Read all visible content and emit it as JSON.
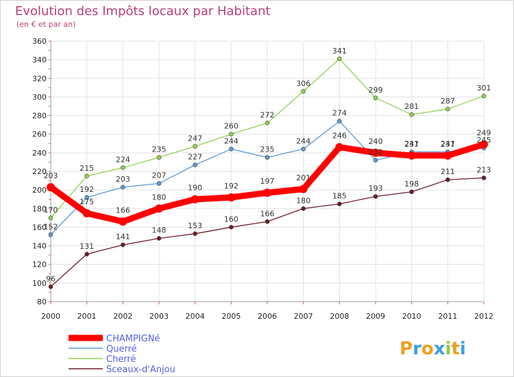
{
  "chart_data": {
    "type": "line",
    "title": "Evolution des Impôts locaux par Habitant",
    "subtitle": "(en € et par an)",
    "x": [
      "2000",
      "2001",
      "2002",
      "2003",
      "2004",
      "2005",
      "2006",
      "2007",
      "2008",
      "2009",
      "2010",
      "2011",
      "2012"
    ],
    "ylim": [
      80,
      360
    ],
    "yticks": [
      80,
      100,
      120,
      140,
      160,
      180,
      200,
      220,
      240,
      260,
      280,
      300,
      320,
      340,
      360
    ],
    "grid": true,
    "legend_position": "bottom-left",
    "series": [
      {
        "name": "CHAMPIGNé",
        "color": "#ff0000",
        "values": [
          203,
          175,
          166,
          180,
          190,
          192,
          197,
          201,
          246,
          240,
          237,
          237,
          249
        ]
      },
      {
        "name": "Querré",
        "color": "#5a9bd5",
        "values": [
          152,
          192,
          203,
          207,
          227,
          244,
          235,
          244,
          274,
          232,
          241,
          241,
          245
        ]
      },
      {
        "name": "Cherré",
        "color": "#8fd14f",
        "values": [
          170,
          215,
          224,
          235,
          247,
          260,
          272,
          306,
          341,
          299,
          281,
          287,
          301
        ]
      },
      {
        "name": "Sceaux-d'Anjou",
        "color": "#6b1d28",
        "values": [
          96,
          131,
          141,
          148,
          153,
          160,
          166,
          180,
          185,
          193,
          198,
          211,
          213
        ]
      }
    ],
    "data_labels": [
      {
        "series": 0,
        "labels": [
          "203",
          "175",
          "166",
          "180",
          "190",
          "192",
          "197",
          "201",
          "246",
          "240",
          "237",
          "237",
          "249"
        ]
      },
      {
        "series": 1,
        "labels": [
          "152",
          "192",
          "203",
          "207",
          "227",
          "244",
          "235",
          "244",
          "274",
          "232",
          "241",
          "241",
          "245"
        ]
      },
      {
        "series": 2,
        "labels": [
          "170",
          "215",
          "224",
          "235",
          "247",
          "260",
          "272",
          "306",
          "341",
          "299",
          "281",
          "287",
          "301"
        ]
      },
      {
        "series": 3,
        "labels": [
          "96",
          "131",
          "141",
          "148",
          "153",
          "160",
          "166",
          "180",
          "185",
          "193",
          "198",
          "211",
          "213"
        ]
      }
    ]
  },
  "logo": {
    "text": "Proxiti"
  }
}
